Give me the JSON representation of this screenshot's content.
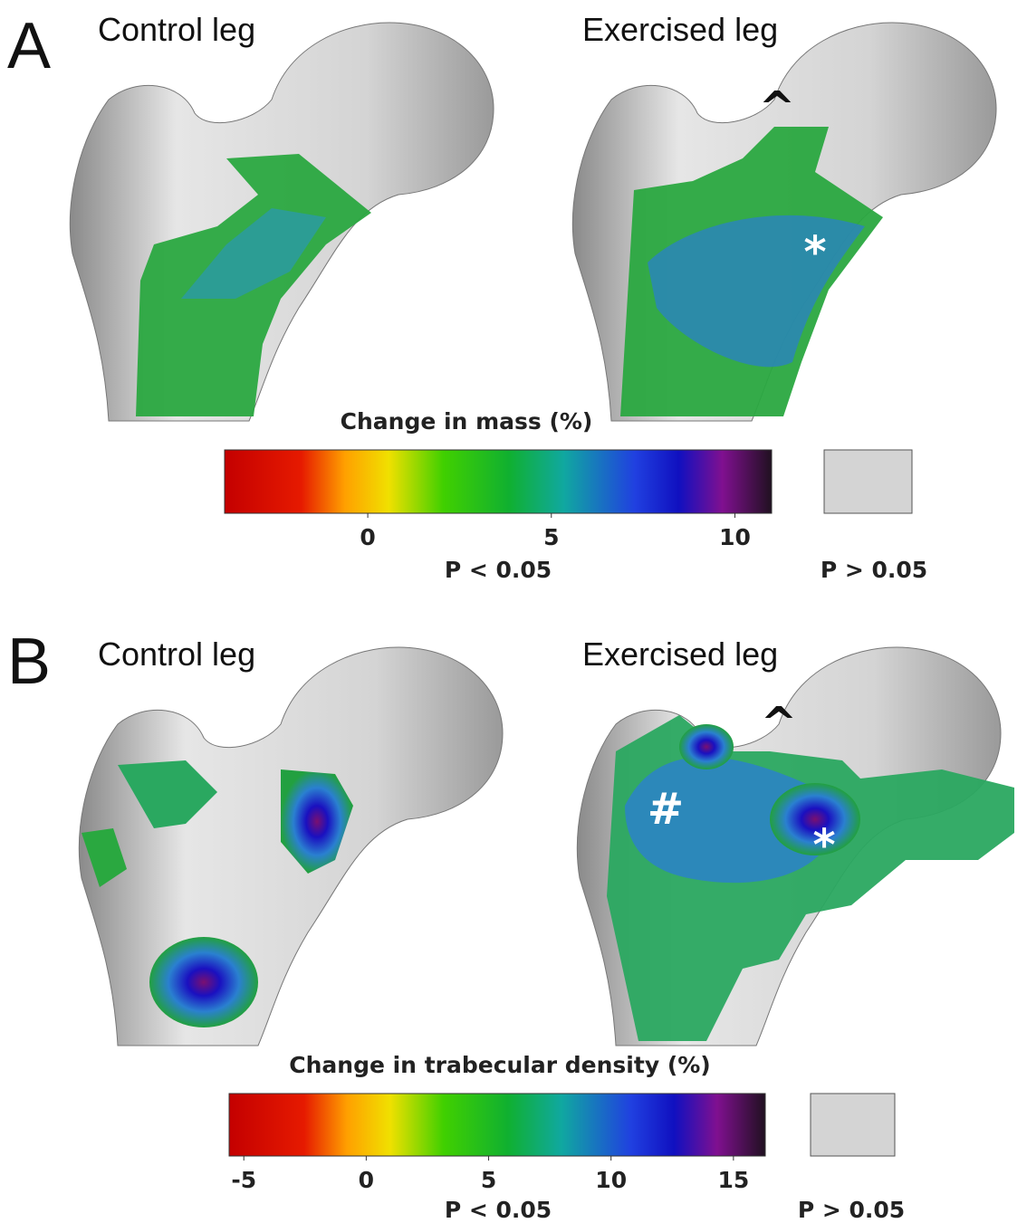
{
  "panels": [
    {
      "label": "A",
      "left_title": "Control leg",
      "right_title": "Exercised leg",
      "annotations": [
        "^",
        "*"
      ],
      "colorbar": {
        "title": "Change in mass (%)",
        "range": [
          -3.9,
          11
        ],
        "ticks": [
          0,
          5,
          10
        ],
        "significant_label": "P < 0.05",
        "nonsignificant_label": "P > 0.05"
      }
    },
    {
      "label": "B",
      "left_title": "Control leg",
      "right_title": "Exercised leg",
      "annotations": [
        "^",
        "#",
        "*"
      ],
      "colorbar": {
        "title": "Change in trabecular density (%)",
        "range": [
          -5.6,
          16.3
        ],
        "ticks": [
          -5,
          0,
          5,
          10,
          15
        ],
        "significant_label": "P < 0.05",
        "nonsignificant_label": "P > 0.05"
      }
    }
  ]
}
